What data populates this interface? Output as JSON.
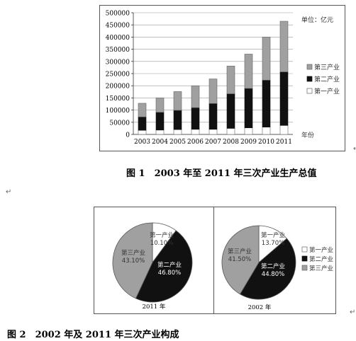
{
  "fig1": {
    "caption": "图 1　2003 年至 2011 年三次产业生产总值",
    "unit_label": "单位：亿元",
    "x_axis_label": "年份"
  },
  "fig2": {
    "caption": "图 2　2002 年及 2011 年三次产业构成"
  },
  "colors": {
    "primary": "#ffffff",
    "secondary": "#111111",
    "tertiary": "#a0a0a0"
  },
  "chart_data": [
    {
      "type": "bar",
      "stacked": true,
      "categories": [
        "2003",
        "2004",
        "2005",
        "2006",
        "2007",
        "2008",
        "2009",
        "2010",
        "2011"
      ],
      "series": [
        {
          "name": "第一产业",
          "values": [
            17000,
            18000,
            20000,
            21000,
            21000,
            25000,
            27000,
            30000,
            37000
          ]
        },
        {
          "name": "第二产业",
          "values": [
            55000,
            73000,
            79000,
            89000,
            106000,
            142000,
            162000,
            193000,
            220000
          ]
        },
        {
          "name": "第三产业",
          "values": [
            56000,
            59000,
            77000,
            90000,
            101000,
            114000,
            141000,
            177000,
            208000
          ]
        }
      ],
      "legend_entries": [
        "第三产业",
        "第二产业",
        "第一产业"
      ],
      "yticks": [
        "0",
        "50000",
        "100000",
        "150000",
        "200000",
        "250000",
        "300000",
        "350000",
        "400000",
        "450000",
        "500000"
      ],
      "ylim": [
        0,
        500000
      ],
      "legend_position": "right",
      "grid": true
    },
    {
      "type": "pie",
      "label": "2011 年",
      "slices": [
        {
          "name": "第一产业",
          "value": 10.1,
          "value_label": "10.10%"
        },
        {
          "name": "第二产业",
          "value": 46.8,
          "value_label": "46.80%"
        },
        {
          "name": "第三产业",
          "value": 43.1,
          "value_label": "43.10%"
        }
      ]
    },
    {
      "type": "pie",
      "label": "2002 年",
      "slices": [
        {
          "name": "第一产业",
          "value": 13.7,
          "value_label": "13.70%"
        },
        {
          "name": "第二产业",
          "value": 44.8,
          "value_label": "44.80%"
        },
        {
          "name": "第三产业",
          "value": 41.5,
          "value_label": "41.50%"
        }
      ],
      "legend_entries": [
        "第一产业",
        "第二产业",
        "第三产业"
      ]
    }
  ]
}
